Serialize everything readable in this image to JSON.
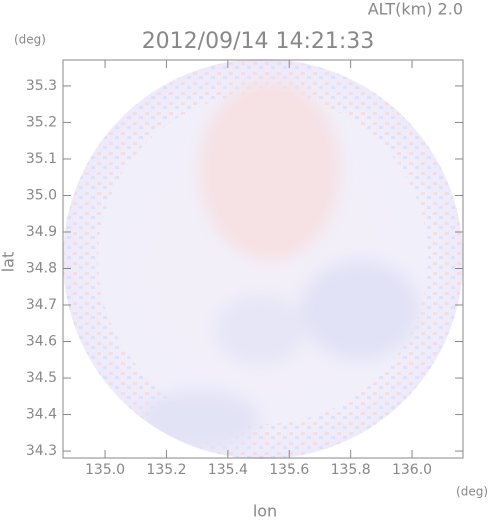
{
  "chart_data": {
    "type": "radar-image",
    "title": "2012/09/14 14:21:33",
    "subtitle": "ALT(km) 2.0",
    "x_label": "lon",
    "y_label": "lat",
    "x_unit": "(deg)",
    "y_unit": "(deg)",
    "xlim": [
      134.863,
      136.166
    ],
    "ylim": [
      34.281,
      35.371
    ],
    "xticks": [
      {
        "value": 135.0,
        "label": "135.0"
      },
      135.2,
      135.4,
      135.6,
      135.8,
      {
        "value": 136.0,
        "label": "136.0"
      }
    ],
    "yticks": [
      34.3,
      34.4,
      34.5,
      34.6,
      34.7,
      34.8,
      34.9,
      {
        "value": 35.0,
        "label": "35.0"
      },
      35.1,
      35.2,
      35.3
    ]
  }
}
